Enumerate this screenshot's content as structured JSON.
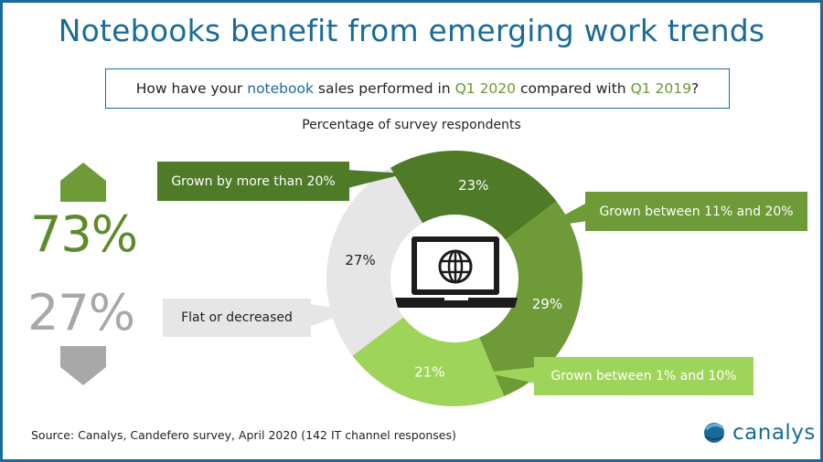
{
  "title": "Notebooks benefit from emerging work trends",
  "question": {
    "prefix": "How have your",
    "product": "notebook",
    "middle": "sales performed in",
    "period_current": "Q1 2020",
    "comparison": "compared with",
    "period_previous": "Q1 2019",
    "suffix": "?"
  },
  "subtitle": "Percentage of survey respondents",
  "summary": {
    "grown_pct": "73%",
    "flat_or_decreased_pct": "27%"
  },
  "callouts": {
    "grown_over_20": "Grown by more than 20%",
    "grown_11_20": "Grown between 11% and 20%",
    "grown_1_10": "Grown between 1% and 10%",
    "flat_or_decreased": "Flat or decreased"
  },
  "chart_data": {
    "type": "pie",
    "variant": "donut",
    "slices": [
      {
        "label": "Grown by more than 20%",
        "value": 23,
        "label_text": "23%",
        "color": "#4f7a28"
      },
      {
        "label": "Grown between 11% and 20%",
        "value": 29,
        "label_text": "29%",
        "color": "#6e9a38"
      },
      {
        "label": "Grown between 1% and 10%",
        "value": 21,
        "label_text": "21%",
        "color": "#9fd45a"
      },
      {
        "label": "Flat or decreased",
        "value": 27,
        "label_text": "27%",
        "color": "#e6e6e6"
      }
    ],
    "start_angle_deg": -30
  },
  "colors": {
    "brand_blue": "#1a6b9a",
    "grown_green": "#5e8a2c",
    "decline_gray": "#a8a8a8"
  },
  "center_icon": "laptop-globe-icon",
  "source": "Source:  Canalys, Candefero survey, April 2020 (142 IT channel responses)",
  "logo": {
    "text": "canalys",
    "icon": "canalys-globe-icon"
  }
}
